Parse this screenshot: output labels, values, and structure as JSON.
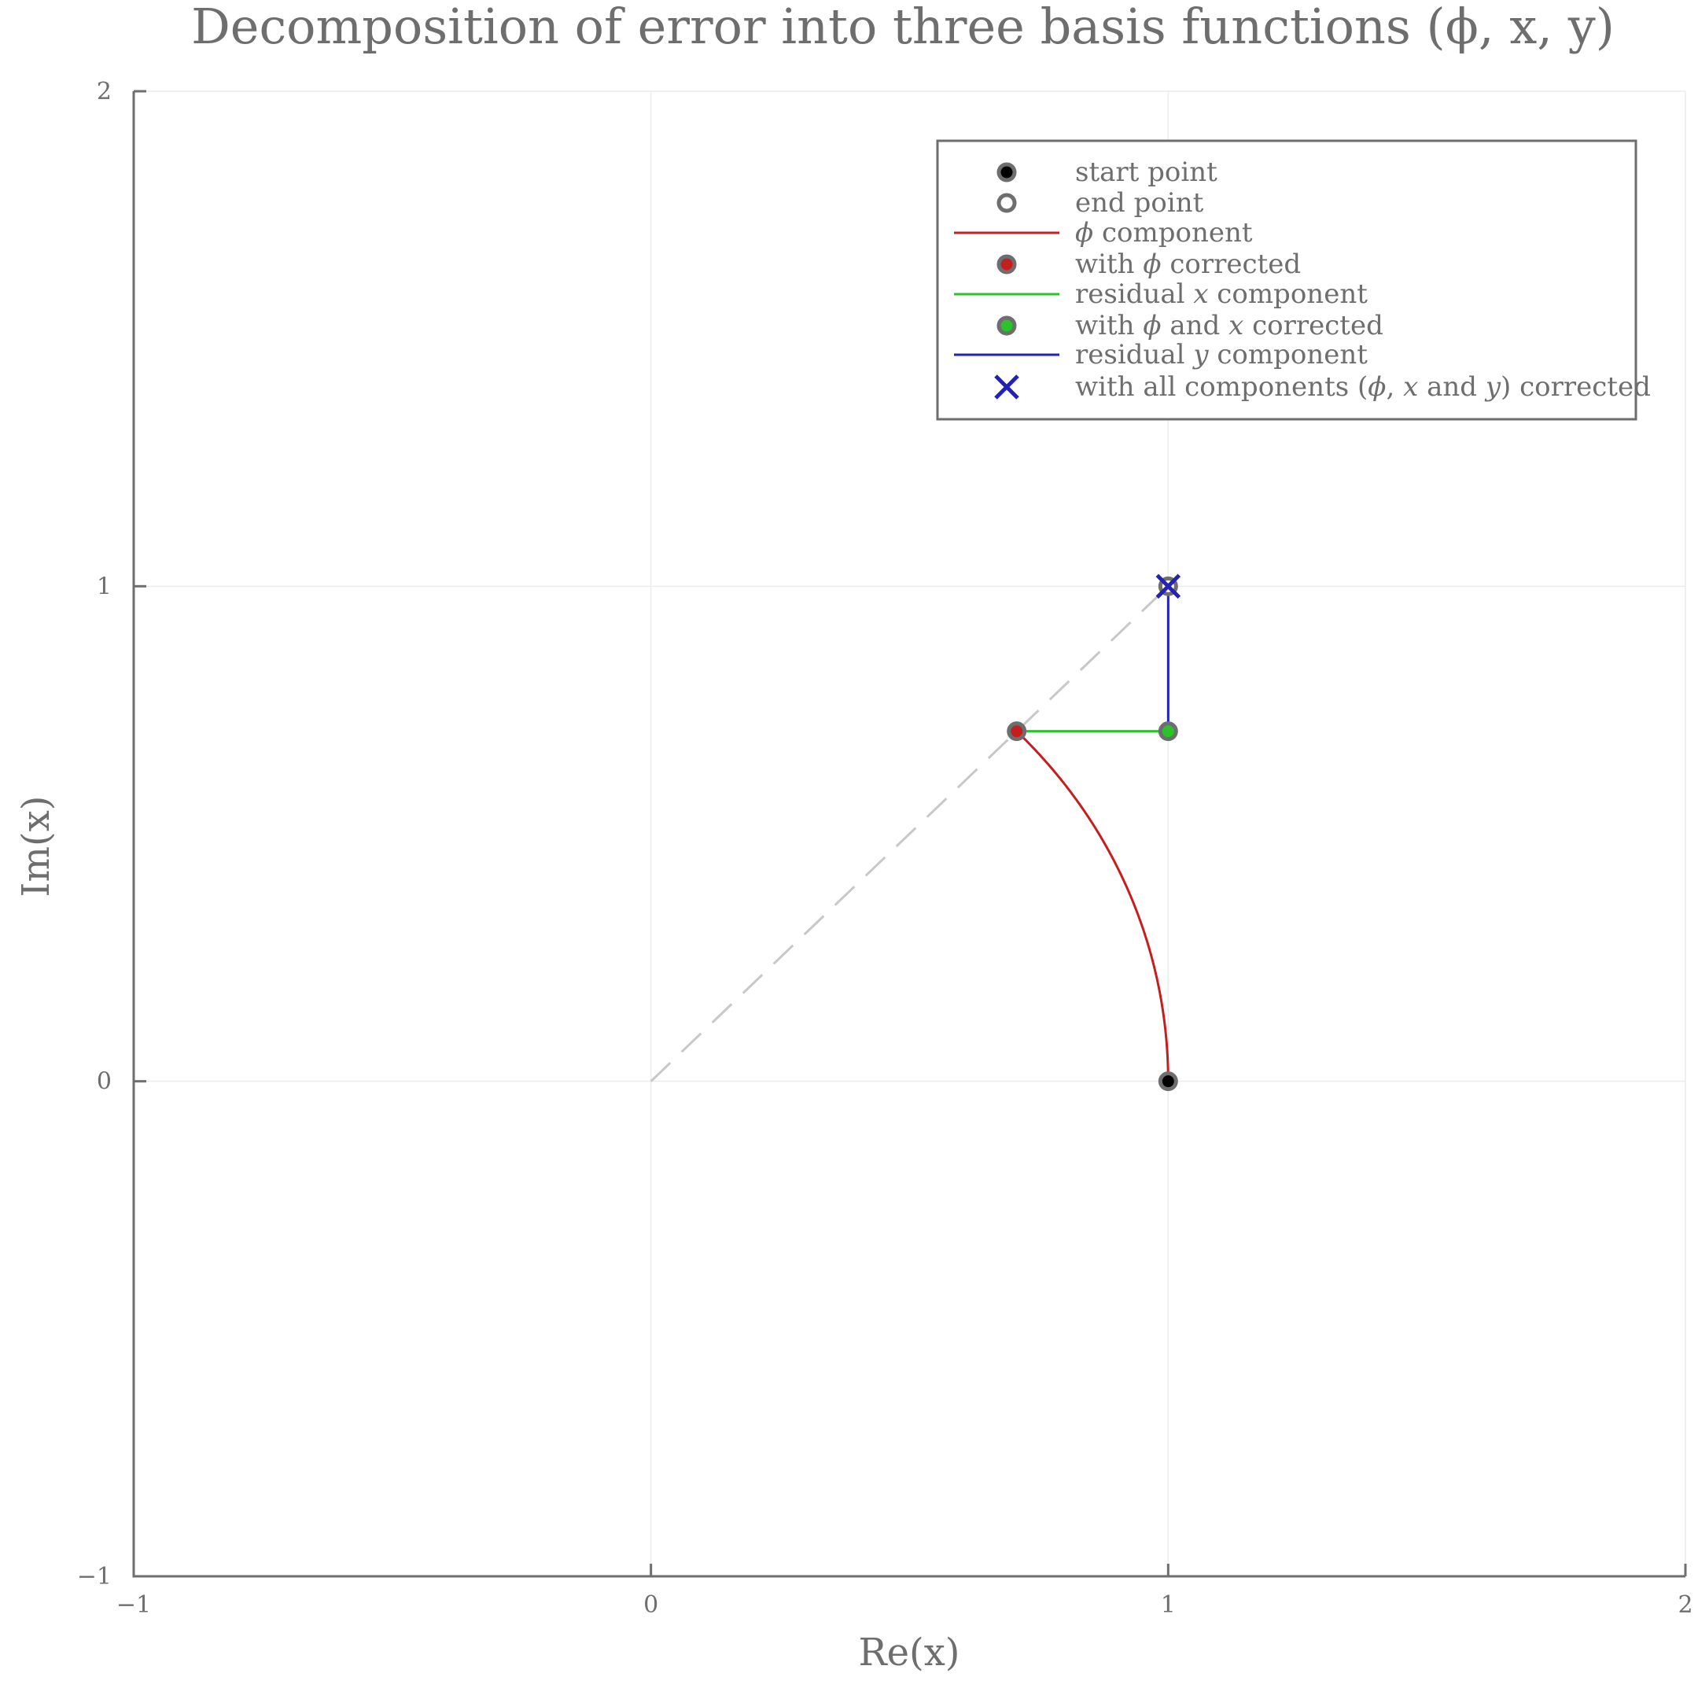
{
  "chart_data": {
    "type": "line",
    "title": "Decomposition of error into three basis functions (ϕ, x, y)",
    "xlabel": "Re(x)",
    "ylabel": "Im(x)",
    "xlim": [
      -1,
      2
    ],
    "ylim": [
      -1,
      2
    ],
    "xticks": [
      -1,
      0,
      1,
      2
    ],
    "yticks": [
      -1,
      0,
      1,
      2
    ],
    "xtick_labels": [
      "−1",
      "0",
      "1",
      "2"
    ],
    "ytick_labels": [
      "−1",
      "0",
      "1",
      "2"
    ],
    "grid": true,
    "legend_position": "top-right",
    "reference_line": {
      "style": "dashed",
      "color": "#c8c8c8",
      "x": [
        0,
        1
      ],
      "y": [
        0,
        1
      ]
    },
    "series": [
      {
        "name": "start point",
        "kind": "marker",
        "marker": "filled-circle",
        "color": "#000000",
        "x": [
          1
        ],
        "y": [
          0
        ]
      },
      {
        "name": "end point",
        "kind": "marker",
        "marker": "open-circle",
        "color": "#6e6e6e",
        "x": [
          1
        ],
        "y": [
          1
        ]
      },
      {
        "name": "ϕ component",
        "kind": "arc",
        "color": "#c31f1f",
        "radius": 1,
        "angle_start_deg": 0,
        "angle_end_deg": 45
      },
      {
        "name": "with ϕ corrected",
        "kind": "marker",
        "marker": "filled-circle",
        "color": "#c31f1f",
        "x": [
          0.7071
        ],
        "y": [
          0.7071
        ]
      },
      {
        "name": "residual x component",
        "kind": "line",
        "color": "#2ac32a",
        "x": [
          0.7071,
          1
        ],
        "y": [
          0.7071,
          0.7071
        ]
      },
      {
        "name": "with ϕ and x corrected",
        "kind": "marker",
        "marker": "filled-circle",
        "color": "#2ac32a",
        "x": [
          1
        ],
        "y": [
          0.7071
        ]
      },
      {
        "name": "residual y component",
        "kind": "line",
        "color": "#2222b8",
        "x": [
          1,
          1
        ],
        "y": [
          0.7071,
          1
        ]
      },
      {
        "name": "with all components (ϕ, x and y) corrected",
        "kind": "marker",
        "marker": "cross",
        "color": "#2222b8",
        "x": [
          1
        ],
        "y": [
          1
        ]
      }
    ],
    "legend_entries": [
      {
        "name": "start point",
        "text": [
          [
            "start point",
            false
          ]
        ]
      },
      {
        "name": "end point",
        "text": [
          [
            "end point",
            false
          ]
        ]
      },
      {
        "name": "ϕ component",
        "text": [
          [
            "ϕ",
            true
          ],
          [
            " component",
            false
          ]
        ]
      },
      {
        "name": "with ϕ corrected",
        "text": [
          [
            "with ",
            false
          ],
          [
            "ϕ",
            true
          ],
          [
            " corrected",
            false
          ]
        ]
      },
      {
        "name": "residual x component",
        "text": [
          [
            "residual ",
            false
          ],
          [
            "x",
            true
          ],
          [
            " component",
            false
          ]
        ]
      },
      {
        "name": "with ϕ and x corrected",
        "text": [
          [
            "with ",
            false
          ],
          [
            "ϕ",
            true
          ],
          [
            " and ",
            false
          ],
          [
            "x",
            true
          ],
          [
            " corrected",
            false
          ]
        ]
      },
      {
        "name": "residual y component",
        "text": [
          [
            "residual ",
            false
          ],
          [
            "y",
            true
          ],
          [
            " component",
            false
          ]
        ]
      },
      {
        "name": "with all components (ϕ, x and y) corrected",
        "text": [
          [
            "with all components (",
            false
          ],
          [
            "ϕ",
            true
          ],
          [
            ", ",
            false
          ],
          [
            "x",
            true
          ],
          [
            " and ",
            false
          ],
          [
            "y",
            true
          ],
          [
            ") corrected",
            false
          ]
        ]
      }
    ]
  }
}
